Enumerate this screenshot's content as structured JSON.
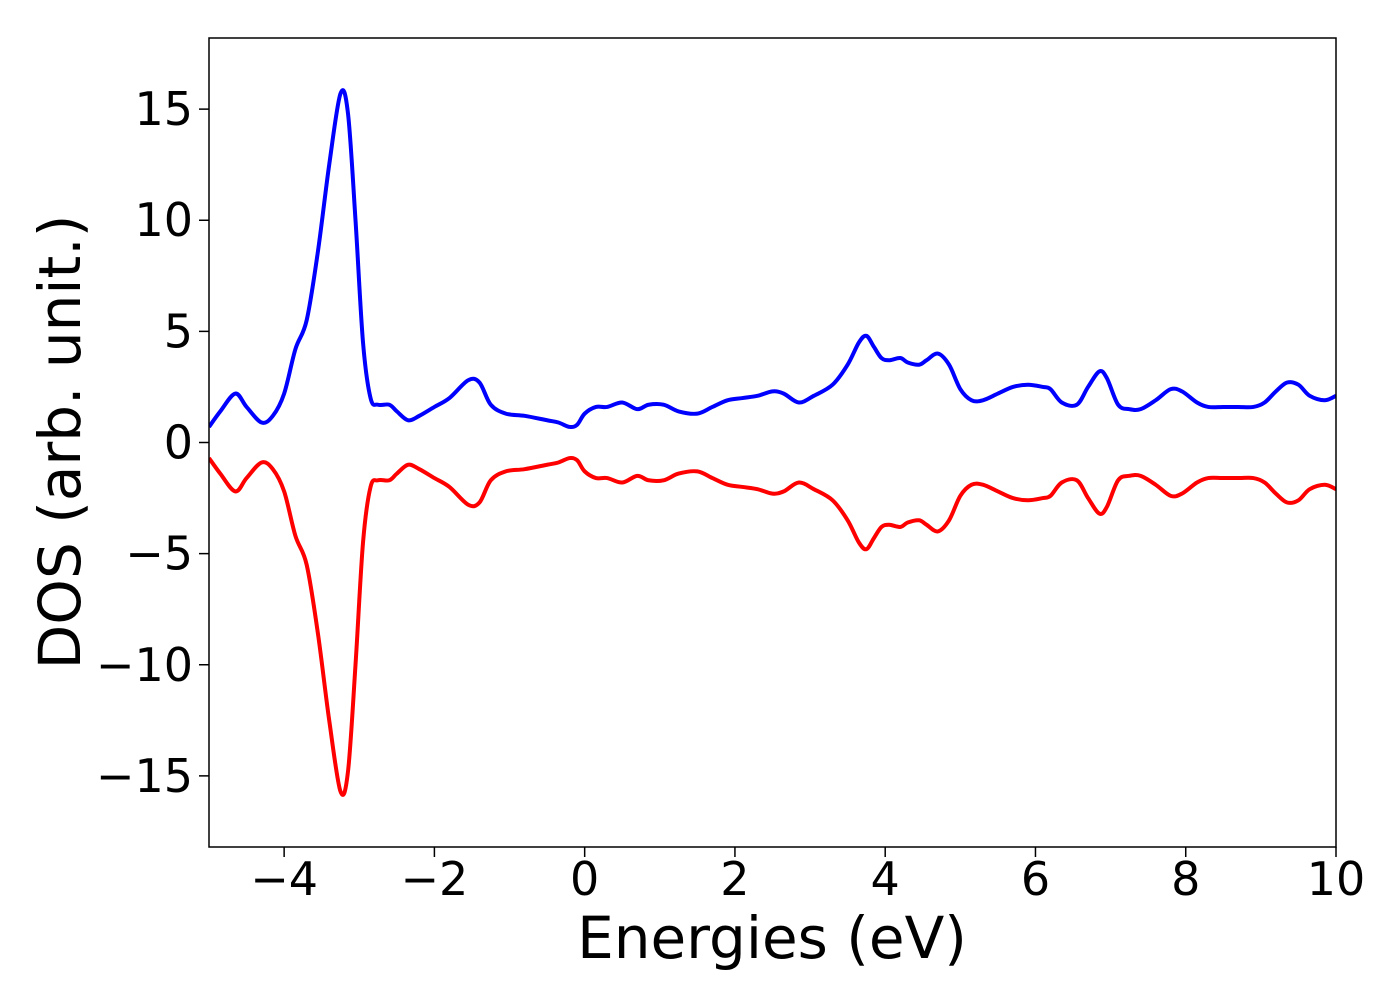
{
  "chart_data": {
    "type": "line",
    "title": "",
    "xlabel": "Energies (eV)",
    "ylabel": "DOS (arb. unit.)",
    "xlim": [
      -5,
      10
    ],
    "ylim": [
      -18.2,
      18.2
    ],
    "xticks": [
      -4,
      -2,
      0,
      2,
      4,
      6,
      8,
      10
    ],
    "yticks": [
      -15,
      -10,
      -5,
      0,
      5,
      10,
      15
    ],
    "xtick_labels": [
      "−4",
      "−2",
      "0",
      "2",
      "4",
      "6",
      "8",
      "10"
    ],
    "ytick_labels": [
      "−15",
      "−10",
      "−5",
      "0",
      "5",
      "10",
      "15"
    ],
    "grid": false,
    "legend": "none",
    "series": [
      {
        "color": "#0000ff",
        "x": [
          -5.0,
          -4.85,
          -4.65,
          -4.5,
          -4.3,
          -4.15,
          -4.0,
          -3.85,
          -3.7,
          -3.55,
          -3.4,
          -3.25,
          -3.15,
          -3.05,
          -2.95,
          -2.85,
          -2.75,
          -2.6,
          -2.5,
          -2.35,
          -2.2,
          -2.0,
          -1.8,
          -1.55,
          -1.4,
          -1.25,
          -1.05,
          -0.8,
          -0.5,
          -0.35,
          -0.2,
          -0.1,
          0.0,
          0.15,
          0.3,
          0.5,
          0.7,
          0.85,
          1.05,
          1.25,
          1.5,
          1.7,
          1.9,
          2.1,
          2.3,
          2.5,
          2.65,
          2.85,
          3.05,
          3.3,
          3.5,
          3.65,
          3.75,
          3.85,
          3.95,
          4.05,
          4.2,
          4.3,
          4.45,
          4.55,
          4.7,
          4.85,
          5.0,
          5.15,
          5.3,
          5.5,
          5.7,
          5.9,
          6.1,
          6.2,
          6.35,
          6.55,
          6.7,
          6.85,
          6.95,
          7.1,
          7.25,
          7.4,
          7.6,
          7.8,
          7.95,
          8.15,
          8.3,
          8.5,
          8.7,
          8.9,
          9.05,
          9.2,
          9.35,
          9.5,
          9.65,
          9.85,
          10.0
        ],
        "y": [
          0.7,
          1.4,
          2.2,
          1.6,
          0.9,
          1.2,
          2.2,
          4.2,
          5.5,
          8.6,
          12.5,
          15.7,
          14.8,
          10.0,
          4.5,
          2.0,
          1.7,
          1.7,
          1.4,
          1.0,
          1.2,
          1.6,
          2.0,
          2.8,
          2.7,
          1.7,
          1.3,
          1.2,
          1.0,
          0.9,
          0.7,
          0.8,
          1.3,
          1.6,
          1.6,
          1.8,
          1.5,
          1.7,
          1.7,
          1.4,
          1.3,
          1.6,
          1.9,
          2.0,
          2.1,
          2.3,
          2.2,
          1.8,
          2.1,
          2.6,
          3.5,
          4.5,
          4.8,
          4.3,
          3.8,
          3.7,
          3.8,
          3.6,
          3.5,
          3.7,
          4.0,
          3.5,
          2.4,
          1.9,
          1.9,
          2.2,
          2.5,
          2.6,
          2.5,
          2.4,
          1.8,
          1.7,
          2.5,
          3.2,
          2.9,
          1.7,
          1.5,
          1.5,
          1.9,
          2.4,
          2.3,
          1.8,
          1.6,
          1.6,
          1.6,
          1.6,
          1.8,
          2.3,
          2.7,
          2.6,
          2.1,
          1.9,
          2.1
        ]
      },
      {
        "color": "#ff0000",
        "x": [
          -5.0,
          -4.85,
          -4.65,
          -4.5,
          -4.3,
          -4.15,
          -4.0,
          -3.85,
          -3.7,
          -3.55,
          -3.4,
          -3.25,
          -3.15,
          -3.05,
          -2.95,
          -2.85,
          -2.75,
          -2.6,
          -2.5,
          -2.35,
          -2.2,
          -2.0,
          -1.8,
          -1.55,
          -1.4,
          -1.25,
          -1.05,
          -0.8,
          -0.5,
          -0.35,
          -0.2,
          -0.1,
          0.0,
          0.15,
          0.3,
          0.5,
          0.7,
          0.85,
          1.05,
          1.25,
          1.5,
          1.7,
          1.9,
          2.1,
          2.3,
          2.5,
          2.65,
          2.85,
          3.05,
          3.3,
          3.5,
          3.65,
          3.75,
          3.85,
          3.95,
          4.05,
          4.2,
          4.3,
          4.45,
          4.55,
          4.7,
          4.85,
          5.0,
          5.15,
          5.3,
          5.5,
          5.7,
          5.9,
          6.1,
          6.2,
          6.35,
          6.55,
          6.7,
          6.85,
          6.95,
          7.1,
          7.25,
          7.4,
          7.6,
          7.8,
          7.95,
          8.15,
          8.3,
          8.5,
          8.7,
          8.9,
          9.05,
          9.2,
          9.35,
          9.5,
          9.65,
          9.85,
          10.0
        ],
        "y": [
          -0.7,
          -1.4,
          -2.2,
          -1.6,
          -0.9,
          -1.2,
          -2.2,
          -4.2,
          -5.5,
          -8.6,
          -12.5,
          -15.7,
          -14.8,
          -10.0,
          -4.5,
          -2.0,
          -1.7,
          -1.7,
          -1.4,
          -1.0,
          -1.2,
          -1.6,
          -2.0,
          -2.8,
          -2.7,
          -1.7,
          -1.3,
          -1.2,
          -1.0,
          -0.9,
          -0.7,
          -0.8,
          -1.3,
          -1.6,
          -1.6,
          -1.8,
          -1.5,
          -1.7,
          -1.7,
          -1.4,
          -1.3,
          -1.6,
          -1.9,
          -2.0,
          -2.1,
          -2.3,
          -2.2,
          -1.8,
          -2.1,
          -2.6,
          -3.5,
          -4.5,
          -4.8,
          -4.3,
          -3.8,
          -3.7,
          -3.8,
          -3.6,
          -3.5,
          -3.7,
          -4.0,
          -3.5,
          -2.4,
          -1.9,
          -1.9,
          -2.2,
          -2.5,
          -2.6,
          -2.5,
          -2.4,
          -1.8,
          -1.7,
          -2.5,
          -3.2,
          -2.9,
          -1.7,
          -1.5,
          -1.5,
          -1.9,
          -2.4,
          -2.3,
          -1.8,
          -1.6,
          -1.6,
          -1.6,
          -1.6,
          -1.8,
          -2.3,
          -2.7,
          -2.6,
          -2.1,
          -1.9,
          -2.1
        ]
      }
    ]
  }
}
